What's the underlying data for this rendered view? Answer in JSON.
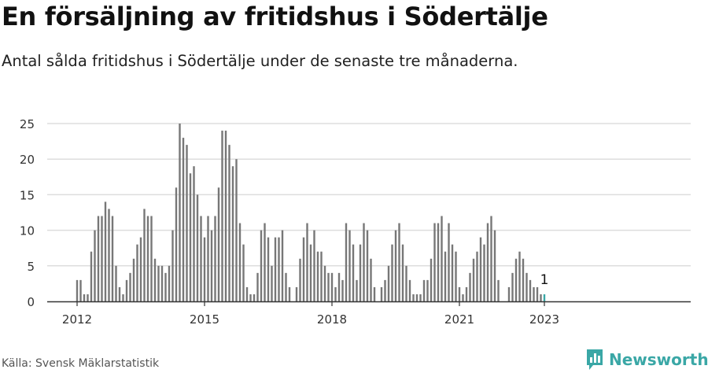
{
  "header": {
    "title": "En försäljning av fritidshus i Södertälje",
    "subtitle": "Antal sålda fritidshus i Södertälje under de senaste tre månaderna."
  },
  "footer": {
    "source": "Källa: Svensk Mäklarstatistik",
    "brand": "Newsworthy",
    "brand_icon": "newsworthy-logo-icon"
  },
  "colors": {
    "bar": "#777777",
    "highlight": "#3aa7a6",
    "grid": "#dddddd",
    "axis": "#333333"
  },
  "chart_data": {
    "type": "bar",
    "title": "",
    "xlabel": "",
    "ylabel": "",
    "ylim": [
      0,
      25
    ],
    "y_ticks": [
      "0",
      "5",
      "10",
      "15",
      "20",
      "25"
    ],
    "x_ticks": [
      "2012",
      "2015",
      "2018",
      "2021",
      "2023"
    ],
    "start": "2012-01",
    "annotation": {
      "label": "1",
      "month": "2023-01"
    },
    "grid": true,
    "values": [
      3,
      3,
      1,
      1,
      7,
      10,
      12,
      12,
      14,
      13,
      12,
      5,
      2,
      1,
      3,
      4,
      6,
      8,
      9,
      13,
      12,
      12,
      6,
      5,
      5,
      4,
      5,
      10,
      16,
      25,
      23,
      22,
      18,
      19,
      15,
      12,
      9,
      12,
      10,
      12,
      16,
      24,
      24,
      22,
      19,
      20,
      11,
      8,
      2,
      1,
      1,
      4,
      10,
      11,
      9,
      5,
      9,
      9,
      10,
      4,
      2,
      0,
      2,
      6,
      9,
      11,
      8,
      10,
      7,
      7,
      5,
      4,
      4,
      2,
      4,
      3,
      11,
      10,
      8,
      3,
      8,
      11,
      10,
      6,
      2,
      0,
      2,
      3,
      5,
      8,
      10,
      11,
      8,
      5,
      3,
      1,
      1,
      1,
      3,
      3,
      6,
      11,
      11,
      12,
      7,
      11,
      8,
      7,
      2,
      1,
      2,
      4,
      6,
      7,
      9,
      8,
      11,
      12,
      10,
      3,
      0,
      0,
      2,
      4,
      6,
      7,
      6,
      4,
      3,
      2,
      2,
      1,
      1
    ]
  }
}
